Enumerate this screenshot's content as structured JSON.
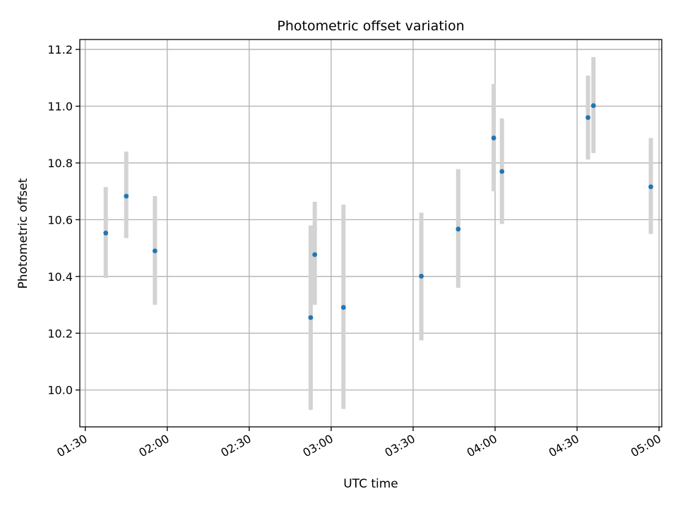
{
  "chart_data": {
    "type": "scatter",
    "title": "Photometric offset variation",
    "xlabel": "UTC time",
    "ylabel": "Photometric offset",
    "x_axis": {
      "type": "time",
      "range": [
        "01:28",
        "05:01"
      ],
      "ticks": [
        "01:30",
        "02:00",
        "02:30",
        "03:00",
        "03:30",
        "04:00",
        "04:30",
        "05:00"
      ]
    },
    "y_axis": {
      "range": [
        9.87,
        11.235
      ],
      "ticks": [
        "10.0",
        "10.2",
        "10.4",
        "10.6",
        "10.8",
        "11.0",
        "11.2"
      ]
    },
    "grid": true,
    "marker_color": "#1f77b4",
    "errorbar_color": "#d3d3d3",
    "points": [
      {
        "time": "01:37:30",
        "y": 10.553,
        "err_low": 10.395,
        "err_high": 10.715
      },
      {
        "time": "01:45:00",
        "y": 10.683,
        "err_low": 10.535,
        "err_high": 10.84
      },
      {
        "time": "01:55:30",
        "y": 10.49,
        "err_low": 10.3,
        "err_high": 10.683
      },
      {
        "time": "02:52:30",
        "y": 10.255,
        "err_low": 9.93,
        "err_high": 10.58
      },
      {
        "time": "02:54:00",
        "y": 10.477,
        "err_low": 10.3,
        "err_high": 10.663
      },
      {
        "time": "03:04:30",
        "y": 10.291,
        "err_low": 9.933,
        "err_high": 10.653
      },
      {
        "time": "03:33:00",
        "y": 10.401,
        "err_low": 10.175,
        "err_high": 10.625
      },
      {
        "time": "03:46:30",
        "y": 10.567,
        "err_low": 10.36,
        "err_high": 10.778
      },
      {
        "time": "03:59:30",
        "y": 10.888,
        "err_low": 10.7,
        "err_high": 11.078
      },
      {
        "time": "04:02:30",
        "y": 10.77,
        "err_low": 10.585,
        "err_high": 10.957
      },
      {
        "time": "04:34:00",
        "y": 10.96,
        "err_low": 10.812,
        "err_high": 11.108
      },
      {
        "time": "04:36:00",
        "y": 11.002,
        "err_low": 10.835,
        "err_high": 11.173
      },
      {
        "time": "04:57:00",
        "y": 10.716,
        "err_low": 10.55,
        "err_high": 10.888
      }
    ]
  }
}
